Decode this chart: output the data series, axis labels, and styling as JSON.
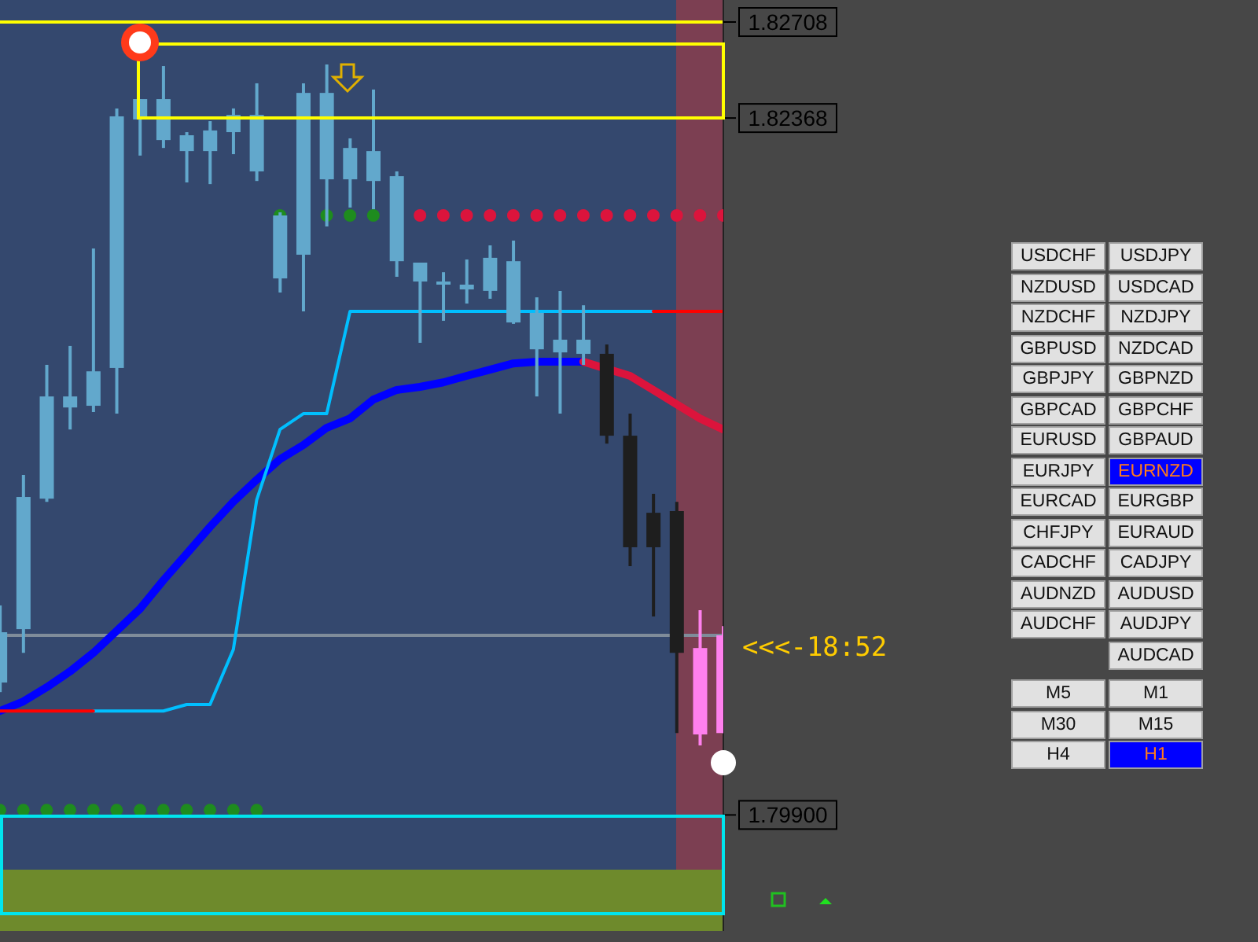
{
  "chart_data": [
    {
      "type": "candlestick",
      "categories": [
        null,
        null,
        null,
        null,
        null,
        null,
        null,
        null,
        null,
        null,
        null,
        null,
        null,
        null,
        null,
        null,
        null,
        null,
        null,
        null,
        null,
        null,
        null,
        null,
        null,
        null,
        null,
        null,
        null,
        null,
        null,
        null
      ],
      "ohlc": [
        [
          1.80369,
          1.80642,
          1.80335,
          1.80547
        ],
        [
          1.80558,
          1.81104,
          1.80474,
          1.81026
        ],
        [
          1.8102,
          1.81494,
          1.81009,
          1.81382
        ],
        [
          1.81343,
          1.81561,
          1.81265,
          1.81382
        ],
        [
          1.81349,
          1.81906,
          1.81327,
          1.81471
        ],
        [
          1.81483,
          1.82402,
          1.81321,
          1.82374
        ],
        [
          1.82363,
          1.82435,
          1.82235,
          1.82435
        ],
        [
          1.8229,
          1.82552,
          1.82262,
          1.82435
        ],
        [
          1.82251,
          1.82318,
          1.8214,
          1.82307
        ],
        [
          1.82251,
          1.82357,
          1.82134,
          1.82324
        ],
        [
          1.82318,
          1.82402,
          1.8224,
          1.82379
        ],
        [
          1.82179,
          1.82491,
          1.82145,
          1.82379
        ],
        [
          1.818,
          1.82034,
          1.8175,
          1.82023
        ],
        [
          1.81884,
          1.82491,
          1.81683,
          1.82457
        ],
        [
          1.82151,
          1.82558,
          1.81984,
          1.82457
        ],
        [
          1.82151,
          1.82296,
          1.82051,
          1.82262
        ],
        [
          1.82145,
          1.82469,
          1.82045,
          1.82251
        ],
        [
          1.81861,
          1.82179,
          1.81806,
          1.82162
        ],
        [
          1.81789,
          1.81856,
          1.81572,
          1.81856
        ],
        [
          1.81778,
          1.81822,
          1.8165,
          1.81789
        ],
        [
          1.81761,
          1.81867,
          1.81711,
          1.81778
        ],
        [
          1.81756,
          1.81917,
          1.81728,
          1.81873
        ],
        [
          1.81644,
          1.81934,
          1.81639,
          1.81861
        ],
        [
          1.81549,
          1.81733,
          1.81382,
          1.81678
        ],
        [
          1.81538,
          1.81756,
          1.81321,
          1.81583
        ],
        [
          1.81533,
          1.81705,
          1.81494,
          1.81583
        ],
        [
          1.81533,
          1.81566,
          1.81215,
          1.81243
        ],
        [
          1.81243,
          1.81321,
          1.80781,
          1.80848
        ],
        [
          1.8097,
          1.81037,
          1.80603,
          1.80848
        ],
        [
          1.80976,
          1.81009,
          1.8019,
          1.80474
        ],
        [
          1.80185,
          1.80625,
          1.80146,
          1.80491
        ],
        [
          1.8019,
          1.80569,
          1.8019,
          1.80536
        ]
      ],
      "colors": [
        "#62a8cc",
        "#62a8cc",
        "#62a8cc",
        "#62a8cc",
        "#62a8cc",
        "#62a8cc",
        "#62a8cc",
        "#62a8cc",
        "#62a8cc",
        "#62a8cc",
        "#62a8cc",
        "#62a8cc",
        "#62a8cc",
        "#62a8cc",
        "#62a8cc",
        "#62a8cc",
        "#62a8cc",
        "#62a8cc",
        "#62a8cc",
        "#62a8cc",
        "#62a8cc",
        "#62a8cc",
        "#62a8cc",
        "#62a8cc",
        "#62a8cc",
        "#62a8cc",
        "#1e1e1e",
        "#1e1e1e",
        "#1e1e1e",
        "#1e1e1e",
        "#ff80ee",
        "#ff80ee"
      ],
      "series": [
        {
          "type": "line",
          "color": "#0000ff",
          "values": [
            1.80268,
            1.80302,
            1.80352,
            1.80408,
            1.80474,
            1.80552,
            1.8063,
            1.80731,
            1.80825,
            1.8092,
            1.81009,
            1.81087,
            1.8116,
            1.8121,
            1.81271,
            1.81304,
            1.81371,
            1.81405,
            1.81416,
            1.81432,
            1.81455,
            1.81477,
            1.81499,
            1.81505,
            1.81505,
            1.81505,
            null,
            null,
            null,
            null,
            null,
            null
          ]
        },
        {
          "type": "line",
          "color": "#dc143c",
          "values": [
            null,
            null,
            null,
            null,
            null,
            null,
            null,
            null,
            null,
            null,
            null,
            null,
            null,
            null,
            null,
            null,
            null,
            null,
            null,
            null,
            null,
            null,
            null,
            null,
            null,
            1.81505,
            null,
            1.81455,
            1.81405,
            1.81354,
            1.81304,
            1.81265
          ]
        },
        {
          "type": "line",
          "color": "#00bfff",
          "values": [
            null,
            null,
            null,
            null,
            1.80268,
            1.80268,
            1.80268,
            1.80268,
            1.80291,
            1.80291,
            1.80486,
            1.81015,
            1.81265,
            1.81321,
            1.81321,
            1.81683,
            1.81683,
            1.81683,
            1.81683,
            1.81683,
            1.81683,
            1.81683,
            null,
            1.81683,
            1.81683,
            1.81683,
            1.81683,
            1.81683,
            1.81683,
            null,
            null,
            null
          ]
        },
        {
          "type": "line",
          "color": "#ff0000",
          "values": [
            1.80268,
            1.80268,
            1.80268,
            1.80268,
            1.80268,
            null,
            null,
            null,
            null,
            null,
            null,
            null,
            null,
            null,
            null,
            null,
            null,
            null,
            null,
            null,
            null,
            null,
            null,
            null,
            null,
            null,
            null,
            null,
            null,
            null,
            null,
            null
          ]
        },
        {
          "type": "line",
          "color": "#ff0000",
          "values": [
            null,
            null,
            null,
            null,
            null,
            null,
            null,
            null,
            null,
            null,
            null,
            null,
            null,
            null,
            null,
            null,
            null,
            null,
            null,
            null,
            null,
            null,
            null,
            null,
            null,
            null,
            null,
            null,
            1.81683,
            1.81683,
            1.81683,
            1.81683
          ]
        },
        {
          "type": "scatter",
          "marker": "circle",
          "color": "#dc143c",
          "values": [
            null,
            null,
            null,
            null,
            null,
            null,
            null,
            null,
            null,
            null,
            null,
            null,
            null,
            null,
            null,
            null,
            null,
            null,
            1.82023,
            1.82023,
            1.82023,
            1.82023,
            1.82023,
            1.82023,
            1.82023,
            1.82023,
            1.82023,
            1.82023,
            1.82023,
            1.82023,
            1.82023,
            1.82023
          ]
        },
        {
          "type": "scatter",
          "marker": "circle",
          "color": "#1e8c1e",
          "values": [
            null,
            null,
            null,
            null,
            null,
            null,
            null,
            null,
            null,
            null,
            null,
            null,
            1.82023,
            null,
            1.82023,
            1.82023,
            1.82023,
            null,
            null,
            null,
            null,
            null,
            null,
            null,
            null,
            null,
            null,
            null,
            null,
            null,
            null,
            null
          ]
        },
        {
          "type": "scatter",
          "marker": "circle",
          "color": "#1e8c1e",
          "values": [
            1.79917,
            1.79917,
            1.79917,
            1.79917,
            1.79917,
            1.79917,
            1.79917,
            1.79917,
            1.79917,
            1.79917,
            1.79917,
            1.79917,
            null,
            null,
            null,
            null,
            null,
            null,
            null,
            null,
            null,
            null,
            null,
            null,
            null,
            null,
            null,
            null,
            null,
            null,
            null,
            null
          ]
        }
      ],
      "ylim": [
        1.79489,
        1.82786
      ],
      "yticks": [
        1.82708,
        1.82368,
        {
          "value": 1.799,
          "label": "1.79900"
        }
      ],
      "tick_labels": "y",
      "ref_lines": [
        {
          "axis": "y",
          "value": 1.82708,
          "color": "#ffff00"
        },
        {
          "axis": "y",
          "value": 1.80536,
          "color": "#7f8c9a"
        }
      ],
      "bands": [
        {
          "axis": "y",
          "from": 1.79489,
          "to": 1.79706,
          "color": "#6e8a2c"
        }
      ],
      "annotations": [
        "<<<-18:52"
      ]
    },
    {
      "type": "other",
      "categories": [
        "USDCHF",
        "USDJPY",
        "NZDUSD",
        "USDCAD",
        "NZDCHF",
        "NZDJPY",
        "GBPUSD",
        "NZDCAD",
        "GBPJPY",
        "GBPNZD",
        "GBPCAD",
        "GBPCHF",
        "EURUSD",
        "GBPAUD",
        "EURJPY",
        "EURNZD",
        "EURCAD",
        "EURGBP",
        "CHFJPY",
        "EURAUD",
        "CADCHF",
        "CADJPY",
        "AUDNZD",
        "AUDUSD",
        "AUDCHF",
        "AUDJPY",
        null,
        "AUDCAD"
      ],
      "colors": [
        "#e1e1e1",
        "#e1e1e1",
        "#e1e1e1",
        "#e1e1e1",
        "#e1e1e1",
        "#e1e1e1",
        "#e1e1e1",
        "#e1e1e1",
        "#e1e1e1",
        "#e1e1e1",
        "#e1e1e1",
        "#e1e1e1",
        "#e1e1e1",
        "#e1e1e1",
        "#e1e1e1",
        "#0000ff",
        "#e1e1e1",
        "#e1e1e1",
        "#e1e1e1",
        "#e1e1e1",
        "#e1e1e1",
        "#e1e1e1",
        "#e1e1e1",
        "#e1e1e1",
        "#e1e1e1",
        "#e1e1e1",
        null,
        "#e1e1e1"
      ]
    },
    {
      "type": "other",
      "categories": [
        "M5",
        "M1",
        "M30",
        "M15",
        "H4",
        "H1"
      ],
      "colors": [
        "#e1e1e1",
        "#e1e1e1",
        "#e1e1e1",
        "#e1e1e1",
        "#e1e1e1",
        "#0000ff"
      ]
    }
  ]
}
